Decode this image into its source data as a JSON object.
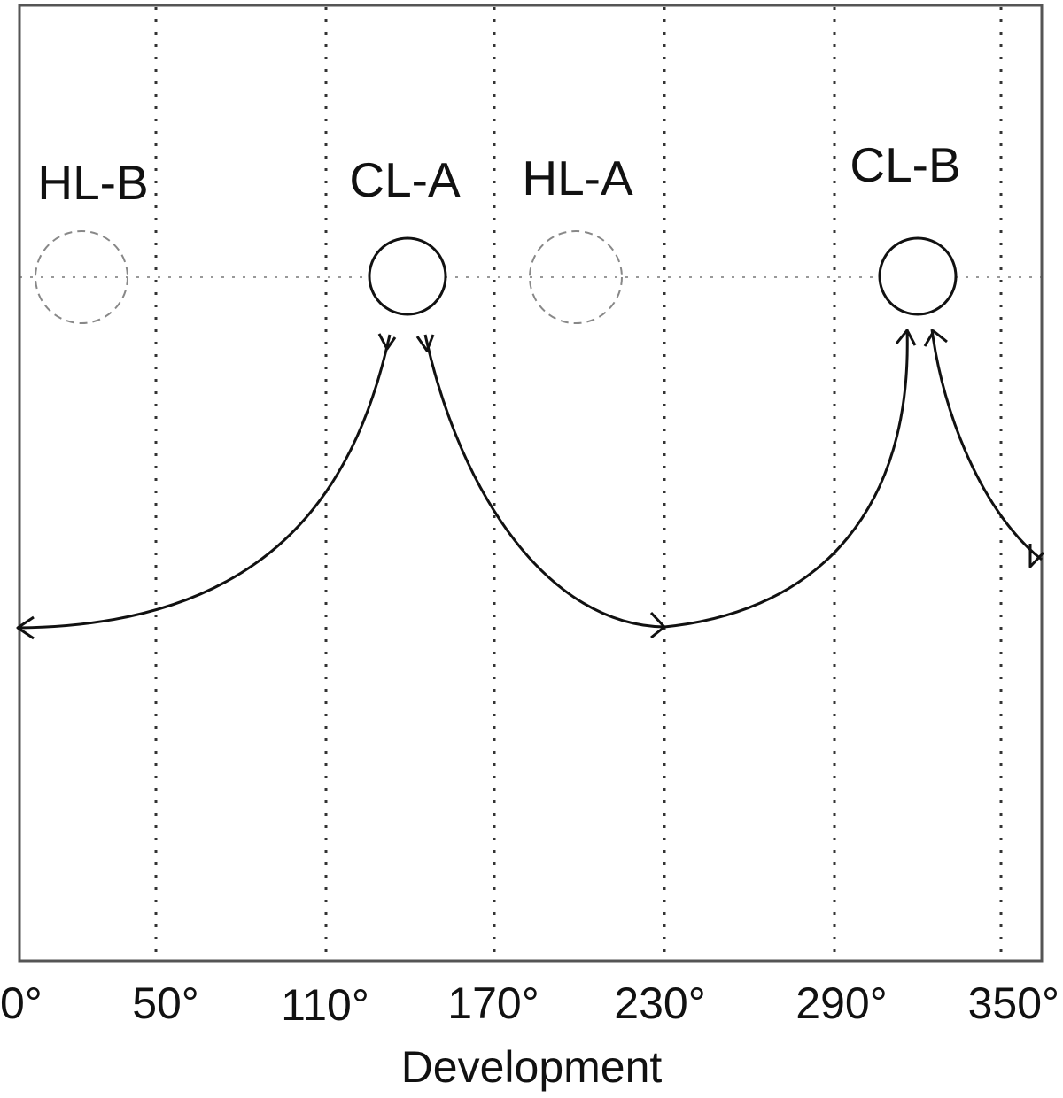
{
  "diagram": {
    "xlabel": "Development",
    "x_ticks": [
      "0°",
      "50°",
      "110°",
      "170°",
      "230°",
      "290°",
      "350°"
    ],
    "x_tick_values": [
      0,
      50,
      110,
      170,
      230,
      290,
      350
    ],
    "nodes": [
      {
        "id": "hl-b",
        "label": "HL-B",
        "style": "dashed"
      },
      {
        "id": "cl-a",
        "label": "CL-A",
        "style": "solid"
      },
      {
        "id": "hl-a",
        "label": "HL-A",
        "style": "dashed"
      },
      {
        "id": "cl-b",
        "label": "CL-B",
        "style": "solid"
      }
    ],
    "colors": {
      "frame": "#555555",
      "grid": "#333333",
      "dashed_node": "#888888",
      "solid_node": "#111111",
      "curve": "#111111"
    }
  }
}
